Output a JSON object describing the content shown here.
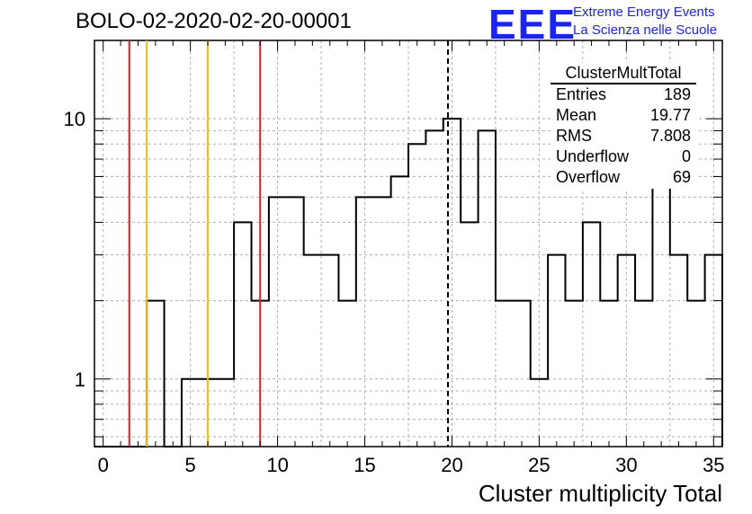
{
  "header": {
    "run_title": "BOLO-02-2020-02-20-00001",
    "logo_text": "EEE",
    "brand_line1": "Extreme Energy Events",
    "brand_line2": "La Scienza nelle Scuole"
  },
  "stats": {
    "title": "ClusterMultTotal",
    "rows": [
      {
        "label": "Entries",
        "value": "189"
      },
      {
        "label": "Mean",
        "value": "19.77"
      },
      {
        "label": "RMS",
        "value": "7.808"
      },
      {
        "label": "Underflow",
        "value": "0"
      },
      {
        "label": "Overflow",
        "value": "69"
      }
    ]
  },
  "chart_data": {
    "type": "histogram",
    "title": "BOLO-02-2020-02-20-00001",
    "xlabel": "Cluster multiplicity Total",
    "ylabel": "",
    "xlim": [
      -0.5,
      35.5
    ],
    "ylim": [
      0.55,
      20
    ],
    "y_scale": "log",
    "grid": true,
    "x_ticks": [
      "0",
      "5",
      "10",
      "15",
      "20",
      "25",
      "30",
      "35"
    ],
    "y_ticks": [
      "1",
      "10"
    ],
    "bin_edges": [
      -0.5,
      0.5,
      1.5,
      2.5,
      3.5,
      4.5,
      5.5,
      6.5,
      7.5,
      8.5,
      9.5,
      10.5,
      11.5,
      12.5,
      13.5,
      14.5,
      15.5,
      16.5,
      17.5,
      18.5,
      19.5,
      20.5,
      21.5,
      22.5,
      23.5,
      24.5,
      25.5,
      26.5,
      27.5,
      28.5,
      29.5,
      30.5,
      31.5,
      32.5,
      33.5,
      34.5,
      35.5
    ],
    "counts": [
      0,
      0,
      0,
      2,
      0,
      1,
      1,
      1,
      4,
      2,
      5,
      5,
      3,
      3,
      2,
      5,
      5,
      6,
      8,
      9,
      10,
      4,
      9,
      2,
      2,
      1,
      3,
      2,
      4,
      2,
      3,
      2,
      6,
      3,
      2,
      3
    ],
    "vertical_lines": [
      {
        "x": 1.5,
        "color": "#e02020",
        "style": "solid"
      },
      {
        "x": 2.5,
        "color": "#f0c000",
        "style": "solid"
      },
      {
        "x": 6.0,
        "color": "#f0c000",
        "style": "solid"
      },
      {
        "x": 9.0,
        "color": "#e02020",
        "style": "solid"
      },
      {
        "x": 19.77,
        "color": "#000000",
        "style": "dashed"
      }
    ],
    "legend_placement": "top-right"
  }
}
